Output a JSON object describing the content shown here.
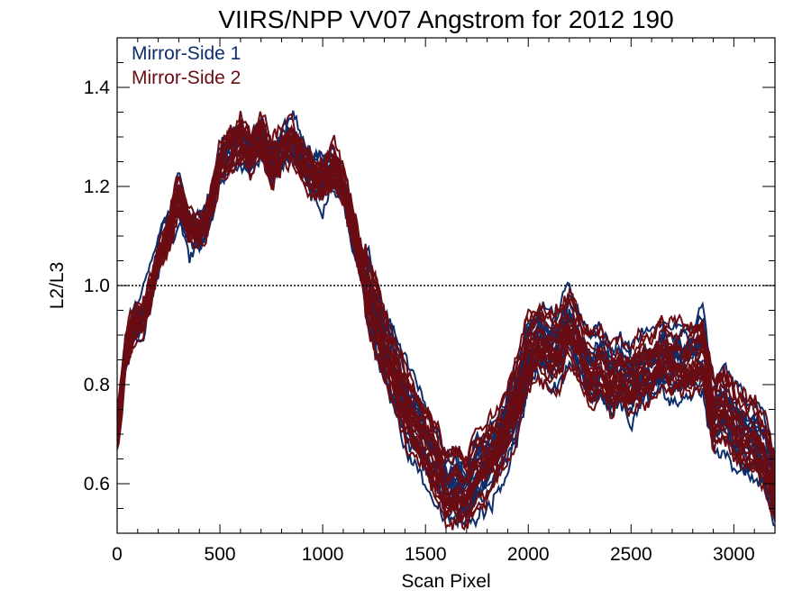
{
  "chart_data": {
    "type": "line",
    "title": "VIIRS/NPP VV07 Angstrom for 2012 190",
    "xlabel": "Scan Pixel",
    "ylabel": "L2/L3",
    "xlim": [
      0,
      3200
    ],
    "ylim": [
      0.5,
      1.5
    ],
    "x_ticks": [
      0,
      500,
      1000,
      1500,
      2000,
      2500,
      3000
    ],
    "y_ticks": [
      0.6,
      0.8,
      1.0,
      1.2,
      1.4
    ],
    "x_tick_labels": [
      "0",
      "500",
      "1000",
      "1500",
      "2000",
      "2500",
      "3000"
    ],
    "y_tick_labels": [
      "0.6",
      "0.8",
      "1.0",
      "1.2",
      "1.4"
    ],
    "reference_line": {
      "y": 1.0,
      "style": "dotted"
    },
    "legend_position": "top-left",
    "colors": {
      "Mirror-Side 1": "#0d2d6b",
      "Mirror-Side 2": "#6b0c12"
    },
    "mean_profile": {
      "x": [
        0,
        40,
        80,
        120,
        160,
        200,
        260,
        300,
        350,
        400,
        450,
        500,
        550,
        600,
        650,
        700,
        750,
        800,
        850,
        900,
        950,
        1000,
        1050,
        1100,
        1150,
        1200,
        1250,
        1300,
        1350,
        1400,
        1450,
        1500,
        1550,
        1600,
        1650,
        1700,
        1750,
        1800,
        1850,
        1900,
        1950,
        2000,
        2050,
        2100,
        2150,
        2200,
        2250,
        2300,
        2350,
        2400,
        2450,
        2500,
        2550,
        2600,
        2650,
        2700,
        2750,
        2800,
        2850,
        2900,
        2950,
        3000,
        3050,
        3100,
        3150,
        3200
      ],
      "y": [
        0.7,
        0.86,
        0.92,
        0.93,
        0.98,
        1.05,
        1.12,
        1.18,
        1.12,
        1.1,
        1.15,
        1.24,
        1.27,
        1.29,
        1.26,
        1.3,
        1.24,
        1.27,
        1.29,
        1.25,
        1.22,
        1.21,
        1.24,
        1.2,
        1.1,
        1.02,
        0.95,
        0.88,
        0.82,
        0.76,
        0.72,
        0.68,
        0.64,
        0.59,
        0.6,
        0.58,
        0.62,
        0.64,
        0.67,
        0.72,
        0.78,
        0.86,
        0.89,
        0.87,
        0.88,
        0.92,
        0.88,
        0.82,
        0.84,
        0.8,
        0.82,
        0.8,
        0.84,
        0.83,
        0.86,
        0.85,
        0.84,
        0.85,
        0.87,
        0.74,
        0.76,
        0.72,
        0.7,
        0.69,
        0.66,
        0.58
      ]
    },
    "series": [
      {
        "name": "Mirror-Side 1",
        "count": 18
      },
      {
        "name": "Mirror-Side 2",
        "count": 18
      }
    ]
  }
}
